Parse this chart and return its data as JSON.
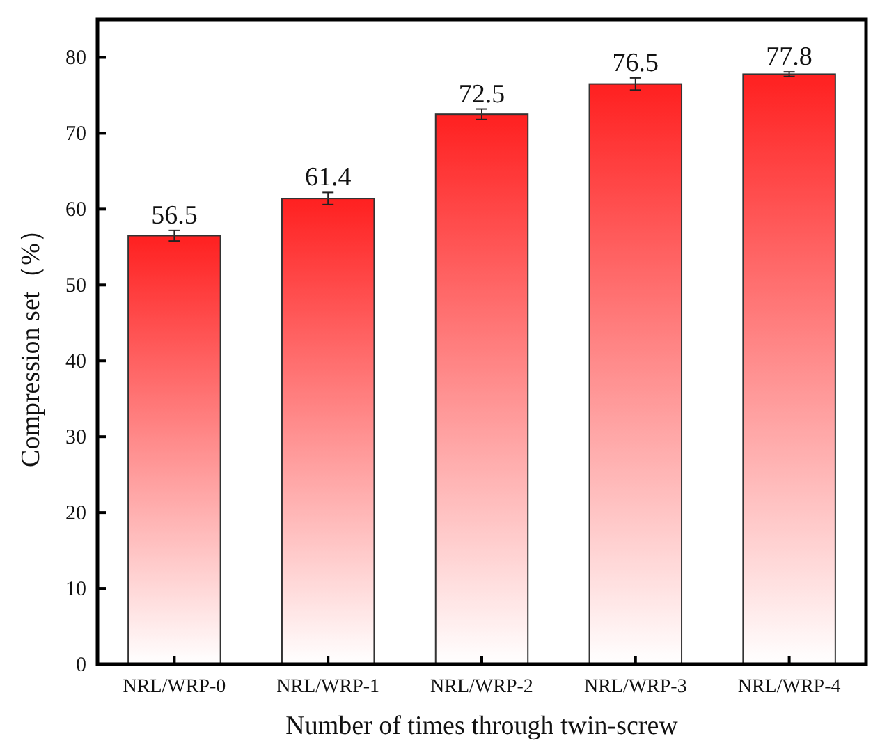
{
  "chart_data": {
    "type": "bar",
    "xlabel": "Number of times through twin-screw",
    "ylabel": "Compression set（%）",
    "categories": [
      "NRL/WRP-0",
      "NRL/WRP-1",
      "NRL/WRP-2",
      "NRL/WRP-3",
      "NRL/WRP-4"
    ],
    "values": [
      56.5,
      61.4,
      72.5,
      76.5,
      77.8
    ],
    "errors": [
      0.7,
      0.8,
      0.7,
      0.8,
      0.3
    ],
    "color": "#ff2020",
    "data_labels": true,
    "ylim": [
      0,
      85
    ],
    "yticks": [
      0,
      10,
      20,
      30,
      40,
      50,
      60,
      70,
      80
    ],
    "grid": false
  }
}
